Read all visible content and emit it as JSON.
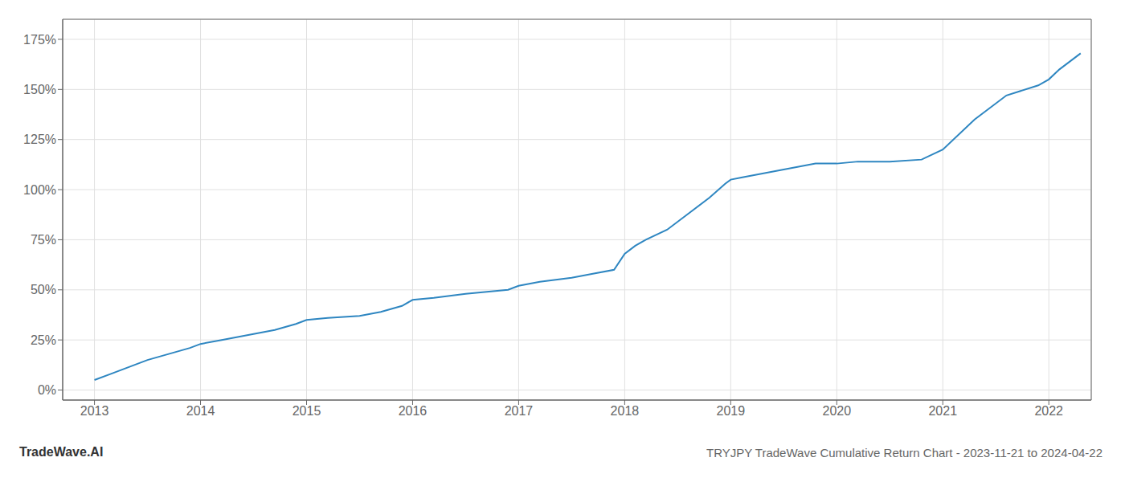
{
  "chart_data": {
    "type": "line",
    "title": "TRYJPY TradeWave Cumulative Return Chart - 2023-11-21 to 2024-04-22",
    "annotations": [
      "TradeWave.AI"
    ],
    "color": "#2e86c1",
    "grid": true,
    "x": [
      2013.0,
      2013.15,
      2013.3,
      2013.5,
      2013.7,
      2013.9,
      2014.0,
      2014.2,
      2014.5,
      2014.7,
      2014.9,
      2015.0,
      2015.2,
      2015.5,
      2015.7,
      2015.9,
      2016.0,
      2016.2,
      2016.5,
      2016.7,
      2016.9,
      2017.0,
      2017.2,
      2017.5,
      2017.7,
      2017.9,
      2018.0,
      2018.1,
      2018.2,
      2018.4,
      2018.6,
      2018.8,
      2018.95,
      2019.0,
      2019.1,
      2019.2,
      2019.5,
      2019.8,
      2020.0,
      2020.2,
      2020.5,
      2020.8,
      2021.0,
      2021.3,
      2021.6,
      2021.9,
      2022.0,
      2022.1,
      2022.2,
      2022.3
    ],
    "values": [
      5,
      8,
      11,
      15,
      18,
      21,
      23,
      25,
      28,
      30,
      33,
      35,
      36,
      37,
      39,
      42,
      45,
      46,
      48,
      49,
      50,
      52,
      54,
      56,
      58,
      60,
      68,
      72,
      75,
      80,
      88,
      96,
      103,
      105,
      106,
      107,
      110,
      113,
      113,
      114,
      114,
      115,
      120,
      135,
      147,
      152,
      155,
      160,
      164,
      168
    ],
    "xlim": [
      2012.7,
      2022.4
    ],
    "xticks": [
      2013,
      2014,
      2015,
      2016,
      2017,
      2018,
      2019,
      2020,
      2021,
      2022
    ],
    "ylim": [
      -5,
      185
    ],
    "yticks": [
      {
        "value": 0,
        "label": "0%"
      },
      {
        "value": 25,
        "label": "25%"
      },
      {
        "value": 50,
        "label": "50%"
      },
      {
        "value": 75,
        "label": "75%"
      },
      {
        "value": 100,
        "label": "100%"
      },
      {
        "value": 125,
        "label": "125%"
      },
      {
        "value": 150,
        "label": "150%"
      },
      {
        "value": 175,
        "label": "175%"
      }
    ]
  }
}
